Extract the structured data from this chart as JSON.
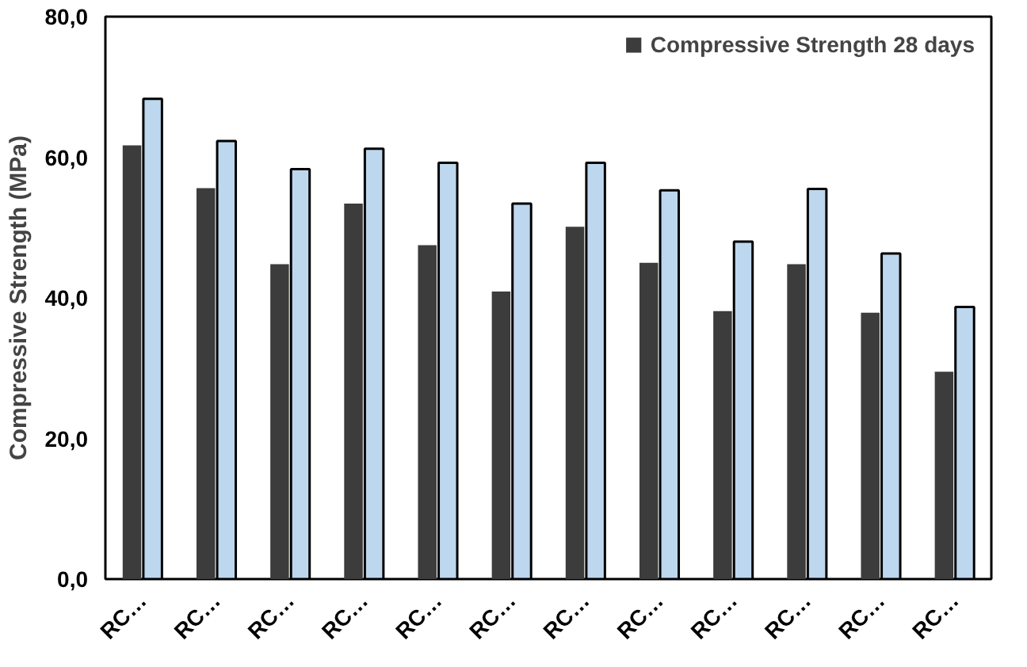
{
  "chart_data": {
    "type": "bar",
    "ylabel": "Compressive Strength (MPa)",
    "categories": [
      "RC…",
      "RC…",
      "RC…",
      "RC…",
      "RC…",
      "RC…",
      "RC…",
      "RC…",
      "RC…",
      "RC…",
      "RC…",
      "RC…"
    ],
    "series": [
      {
        "name": "Compressive Strength 28 days",
        "color": "#3c3c3c",
        "values": [
          61.7,
          55.6,
          44.8,
          53.4,
          47.5,
          40.9,
          50.1,
          45.0,
          38.1,
          44.8,
          37.9,
          29.5
        ]
      },
      {
        "color": "#bdd7ee",
        "values": [
          68.3,
          62.3,
          58.3,
          61.2,
          59.2,
          53.4,
          59.2,
          55.3,
          48.0,
          55.5,
          46.3,
          38.7
        ]
      }
    ],
    "ylim": [
      0,
      80
    ],
    "yticks": [
      {
        "value": 0,
        "label": "0,0"
      },
      {
        "value": 20,
        "label": "20,0"
      },
      {
        "value": 40,
        "label": "40,0"
      },
      {
        "value": 60,
        "label": "60,0"
      },
      {
        "value": 80,
        "label": "80,0"
      }
    ],
    "grid": false,
    "legend": "top right"
  }
}
